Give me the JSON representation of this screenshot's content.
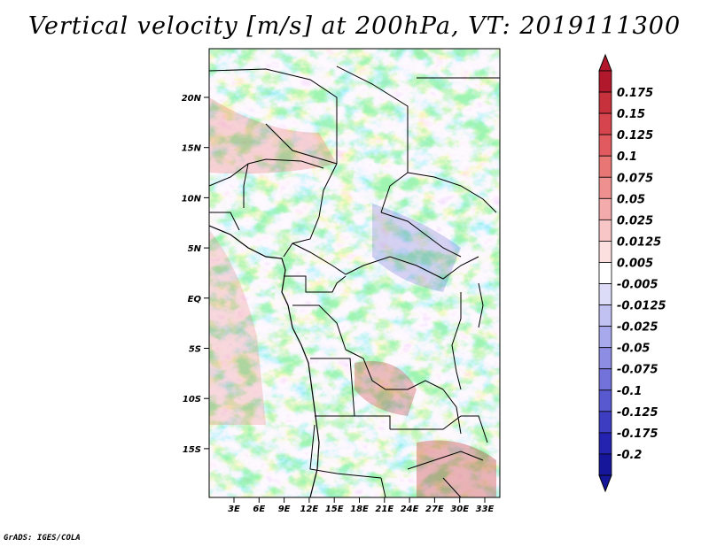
{
  "title": "Vertical velocity [m/s] at 200hPa, VT: 2019111300",
  "credit": "GrADS: IGES/COLA",
  "map": {
    "lat_ticks": [
      "20N",
      "15N",
      "10N",
      "5N",
      "EQ",
      "5S",
      "10S",
      "15S"
    ],
    "lon_ticks": [
      "3E",
      "6E",
      "9E",
      "12E",
      "15E",
      "18E",
      "21E",
      "24E",
      "27E",
      "30E",
      "33E"
    ]
  },
  "colorbar": {
    "labels": [
      "0.175",
      "0.15",
      "0.125",
      "0.1",
      "0.075",
      "0.05",
      "0.025",
      "0.0125",
      "0.005",
      "-0.005",
      "-0.0125",
      "-0.025",
      "-0.05",
      "-0.075",
      "-0.1",
      "-0.125",
      "-0.175",
      "-0.2"
    ],
    "colors": [
      "#b2182b",
      "#c6313c",
      "#d6454d",
      "#e05a60",
      "#e87675",
      "#ef9090",
      "#f4abab",
      "#f8c6c6",
      "#fce0e0",
      "#ffffff",
      "#dcdcf8",
      "#c2c2f2",
      "#a8a8ec",
      "#8d8de4",
      "#7272da",
      "#5858cf",
      "#3d3dc1",
      "#2323b0",
      "#16169a"
    ],
    "top_color": "#b2182b",
    "bottom_color": "#16169a"
  }
}
